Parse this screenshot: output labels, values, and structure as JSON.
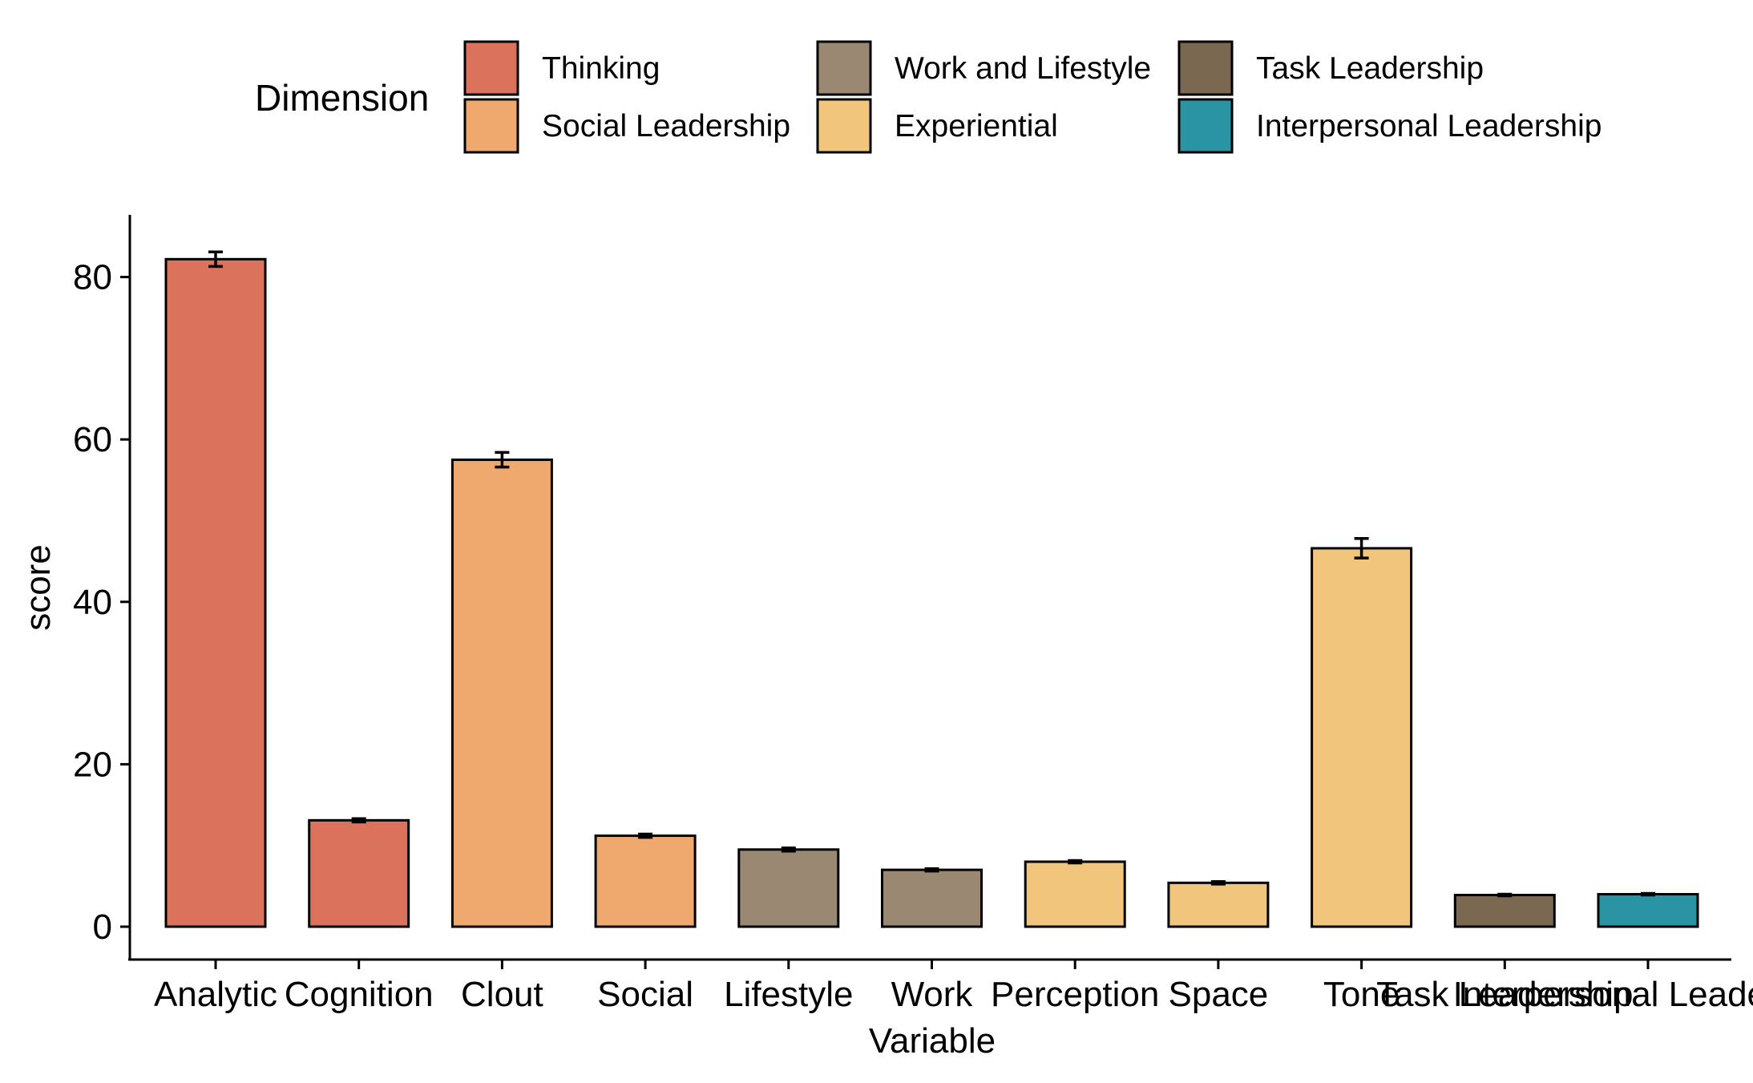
{
  "chart_data": {
    "type": "bar",
    "title": "",
    "xlabel": "Variable",
    "ylabel": "score",
    "ylim": [
      0,
      87
    ],
    "yticks": [
      0,
      20,
      40,
      60,
      80
    ],
    "grid": false,
    "legend": {
      "title": "Dimension",
      "placement": "top",
      "entries": [
        {
          "name": "Thinking",
          "color": "#DB735C"
        },
        {
          "name": "Social Leadership",
          "color": "#EFA86E"
        },
        {
          "name": "Work and Lifestyle",
          "color": "#9A8873"
        },
        {
          "name": "Experiential",
          "color": "#F2C57C"
        },
        {
          "name": "Task Leadership",
          "color": "#7B6851"
        },
        {
          "name": "Interpersonal Leadership",
          "color": "#2A93A4"
        }
      ]
    },
    "categories": [
      "Analytic",
      "Cognition",
      "Clout",
      "Social",
      "Lifestyle",
      "Work",
      "Perception",
      "Space",
      "Tone",
      "Task Leadership",
      "Interpersonal Leadership"
    ],
    "values": [
      82.2,
      13.1,
      57.5,
      11.2,
      9.5,
      7.0,
      8.0,
      5.4,
      46.6,
      3.9,
      4.0
    ],
    "errors": [
      0.9,
      0.2,
      0.9,
      0.2,
      0.2,
      0.15,
      0.15,
      0.15,
      1.2,
      0.1,
      0.1
    ],
    "dimension": [
      "Thinking",
      "Thinking",
      "Social Leadership",
      "Social Leadership",
      "Work and Lifestyle",
      "Work and Lifestyle",
      "Experiential",
      "Experiential",
      "Experiential",
      "Task Leadership",
      "Interpersonal Leadership"
    ]
  }
}
